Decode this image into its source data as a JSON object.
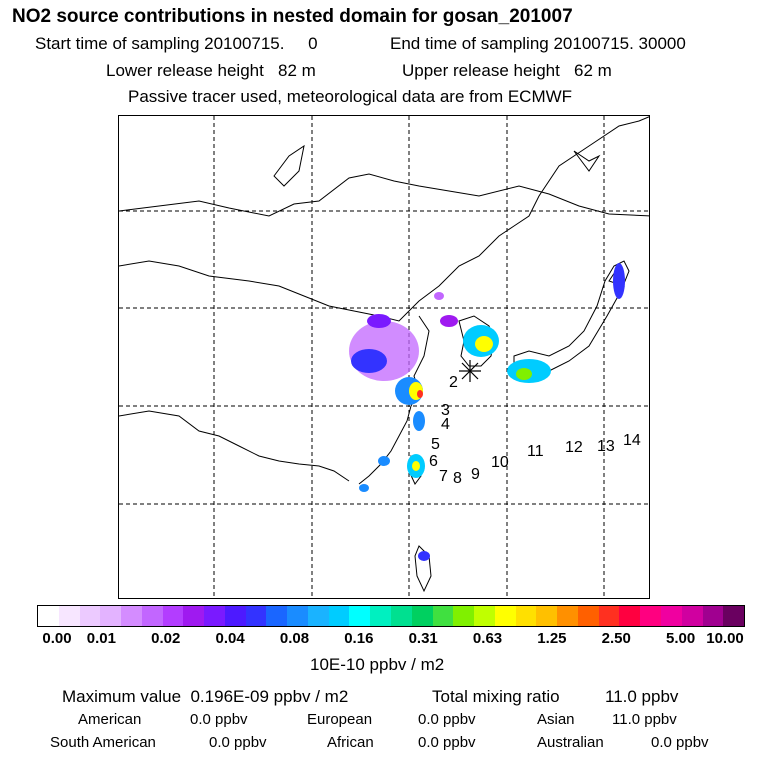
{
  "header": {
    "title": "NO2 source contributions in nested domain for gosan_201007",
    "line1_left": "Start time of sampling 20100715.     0",
    "line1_right": "End time of sampling 20100715. 30000",
    "line2_left": "Lower release height   82 m",
    "line2_right": "Upper release height   62 m",
    "line3": "Passive tracer used, meteorological data are from ECMWF"
  },
  "map": {
    "track_labels": [
      "2",
      "3",
      "4",
      "5",
      "6",
      "7",
      "8",
      "9",
      "10",
      "11",
      "12",
      "13",
      "14"
    ],
    "colors": {
      "land_outline": "#000000",
      "grid": "#000000"
    }
  },
  "colorbar": {
    "colors": [
      "#ffffff",
      "#f7e6ff",
      "#eccaff",
      "#e3b3ff",
      "#d48cff",
      "#c266ff",
      "#b33dff",
      "#9f1af0",
      "#7a1aff",
      "#4d1aff",
      "#3333ff",
      "#1a66ff",
      "#1a8cff",
      "#1ab3ff",
      "#00ccff",
      "#00ffff",
      "#00f0c0",
      "#00e090",
      "#00d060",
      "#40e040",
      "#80f000",
      "#c0ff00",
      "#ffff00",
      "#ffe000",
      "#ffc000",
      "#ff9000",
      "#ff6000",
      "#ff3020",
      "#ff0040",
      "#ff0080",
      "#f000a0",
      "#d000a0",
      "#a00090",
      "#6a0060"
    ],
    "tick_labels": [
      "0.00",
      "0.01",
      "0.02",
      "0.04",
      "0.08",
      "0.16",
      "0.31",
      "0.63",
      "1.25",
      "2.50",
      "5.00",
      "10.00"
    ],
    "unit": "10E-10 ppbv / m2"
  },
  "stats": {
    "max_label": "Maximum value  0.196E-09 ppbv / m2",
    "total_label": "Total mixing ratio",
    "total_value": "11.0 ppbv",
    "american_label": "American",
    "american_value": "0.0 ppbv",
    "european_label": "European",
    "european_value": "0.0 ppbv",
    "asian_label": "Asian",
    "asian_value": "11.0 ppbv",
    "south_american_label": "South American",
    "south_american_value": "0.0 ppbv",
    "african_label": "African",
    "african_value": "0.0 ppbv",
    "australian_label": "Australian",
    "australian_value": "0.0 ppbv"
  }
}
